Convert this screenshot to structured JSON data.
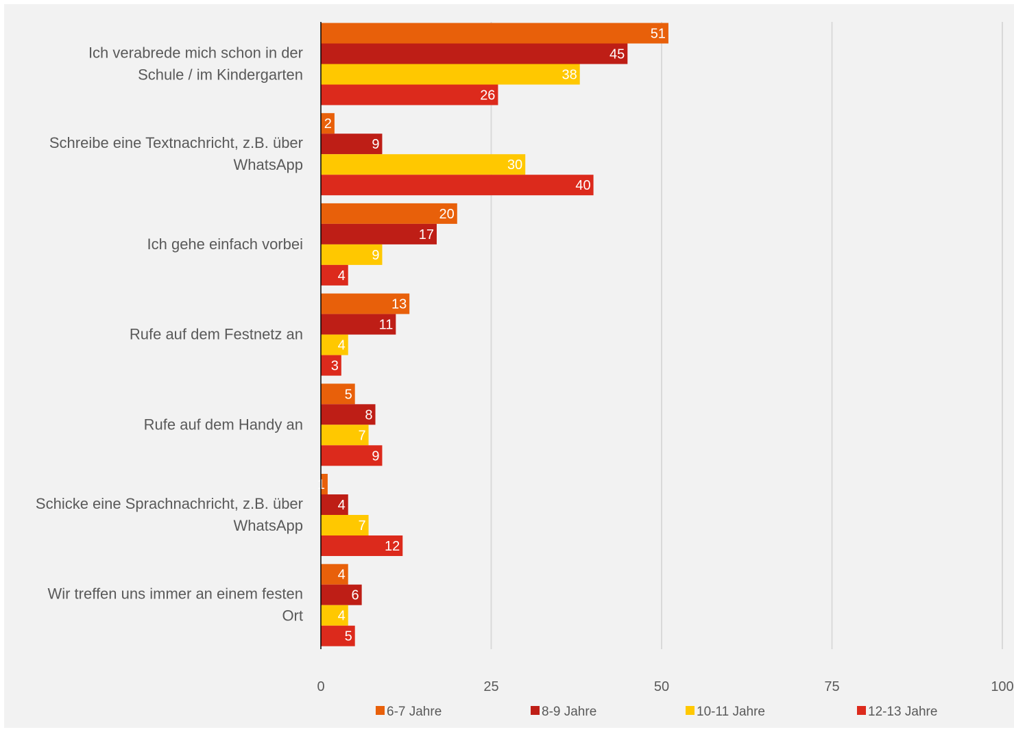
{
  "chart_data": {
    "type": "bar",
    "orientation": "horizontal",
    "categories": [
      [
        "Ich verabrede mich schon in der",
        "Schule / im Kindergarten"
      ],
      [
        "Schreibe eine Textnachricht, z.B. über",
        "WhatsApp"
      ],
      [
        "Ich gehe einfach vorbei"
      ],
      [
        "Rufe auf dem Festnetz an"
      ],
      [
        "Rufe auf dem Handy an"
      ],
      [
        "Schicke eine Sprachnachricht, z.B. über",
        "WhatsApp"
      ],
      [
        "Wir treffen uns immer an einem festen",
        "Ort"
      ]
    ],
    "series": [
      {
        "name": "6-7 Jahre",
        "color": "#e8600a",
        "values": [
          51,
          2,
          20,
          13,
          5,
          1,
          4
        ]
      },
      {
        "name": "8-9 Jahre",
        "color": "#be1e16",
        "values": [
          45,
          9,
          17,
          11,
          8,
          4,
          6
        ]
      },
      {
        "name": "10-11 Jahre",
        "color": "#ffc800",
        "values": [
          38,
          30,
          9,
          4,
          7,
          7,
          4
        ]
      },
      {
        "name": "12-13 Jahre",
        "color": "#dc2a1c",
        "values": [
          26,
          40,
          4,
          3,
          9,
          12,
          5
        ]
      }
    ],
    "xlim": [
      0,
      100
    ],
    "xticks": [
      "0",
      "25",
      "50",
      "75",
      "100"
    ],
    "grid": true,
    "legend": "bottom",
    "title": "",
    "xlabel": "",
    "ylabel": ""
  }
}
